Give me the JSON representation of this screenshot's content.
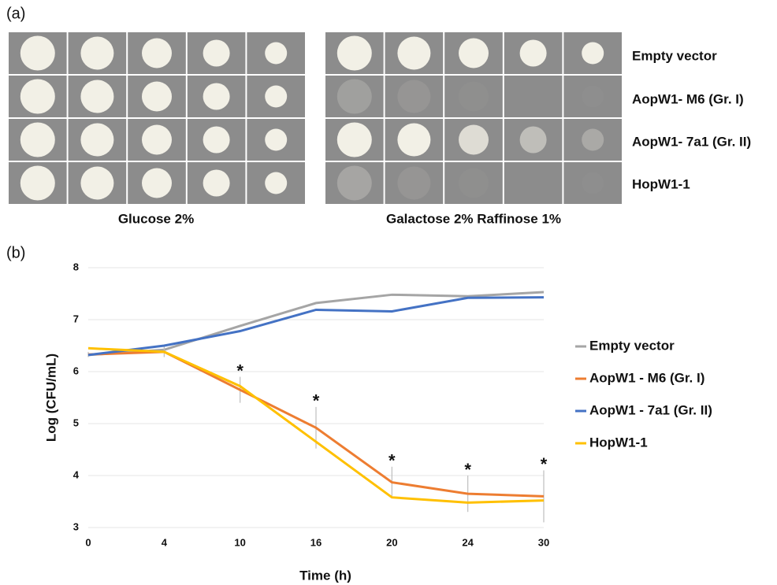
{
  "panel_a": {
    "label": "(a)",
    "rows": [
      "Empty vector",
      "AopW1- M6 (Gr. I)",
      "AopW1- 7a1 (Gr. II)",
      "HopW1-1"
    ],
    "conditions": [
      "Glucose 2%",
      "Galactose 2% Raffinose 1%"
    ]
  },
  "panel_b": {
    "label": "(b)"
  },
  "chart_data": {
    "type": "line",
    "x_label": "Time (h)",
    "y_label": "Log (CFU/mL)",
    "categories": [
      "0",
      "4",
      "10",
      "16",
      "20",
      "24",
      "30"
    ],
    "ylim": [
      3,
      8
    ],
    "yticks": [
      3,
      4,
      5,
      6,
      7,
      8
    ],
    "grid": true,
    "legend": "right",
    "series": [
      {
        "name": "Empty vector",
        "color": "#a5a5a5",
        "values": [
          6.32,
          6.42,
          6.88,
          7.32,
          7.48,
          7.45,
          7.53
        ]
      },
      {
        "name": "AopW1 - M6 (Gr. I)",
        "color": "#ed7d31",
        "values": [
          6.33,
          6.38,
          5.65,
          4.92,
          3.87,
          3.65,
          3.6
        ],
        "errors": [
          0.05,
          0.1,
          0.25,
          0.4,
          0.3,
          0.35,
          0.5
        ]
      },
      {
        "name": "AopW1 - 7a1 (Gr. II)",
        "color": "#4472c4",
        "values": [
          6.32,
          6.5,
          6.78,
          7.19,
          7.16,
          7.42,
          7.43
        ]
      },
      {
        "name": "HopW1-1",
        "color": "#ffc000",
        "values": [
          6.45,
          6.38,
          5.72,
          4.65,
          3.58,
          3.48,
          3.52
        ]
      }
    ],
    "significance": [
      null,
      null,
      "*",
      "*",
      "*",
      "*",
      "*"
    ]
  }
}
